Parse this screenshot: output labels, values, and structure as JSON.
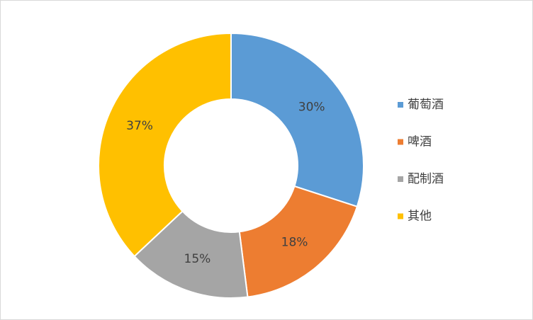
{
  "chart_data": {
    "type": "donut",
    "categories": [
      "葡萄酒",
      "啤酒",
      "配制酒",
      "其他"
    ],
    "values": [
      30,
      18,
      15,
      37
    ],
    "value_labels": [
      "30%",
      "18%",
      "15%",
      "37%"
    ],
    "colors": [
      "#5b9bd5",
      "#ed7d31",
      "#a5a5a5",
      "#ffc000"
    ],
    "legend": "right"
  }
}
